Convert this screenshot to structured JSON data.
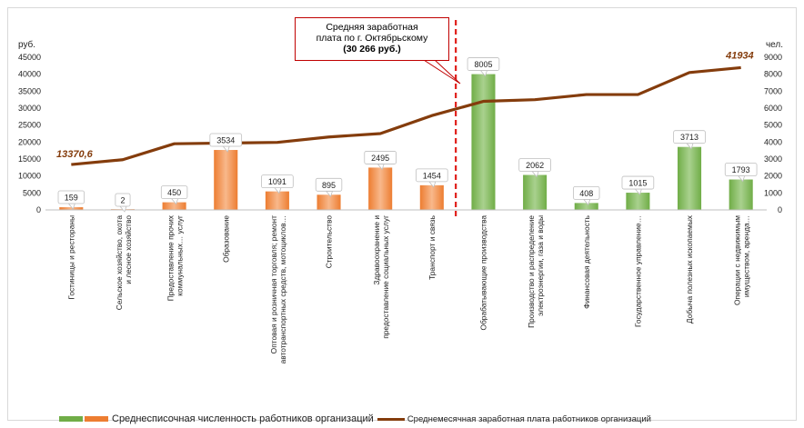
{
  "chart_data": {
    "type": "bar+line",
    "y_left": {
      "unit_label": "руб.",
      "ticks": [
        "45000",
        "40000",
        "35000",
        "30000",
        "25000",
        "20000",
        "15000",
        "10000",
        "5000",
        "0"
      ],
      "ylim": [
        0,
        45000
      ]
    },
    "y_right": {
      "unit_label": "чел.",
      "ticks": [
        "9000",
        "8000",
        "7000",
        "6000",
        "5000",
        "4000",
        "3000",
        "2000",
        "1000",
        "0"
      ],
      "ylim": [
        0,
        9000
      ]
    },
    "categories": [
      "Гостиницы и рестораны",
      "Сельское хозяйство, охота и лесное хозяйство",
      "Предоставление прочих коммунальных… услуг",
      "Образование",
      "Оптовая и розничная торговля; ремонт автотранспортных средств, мотоциклов…",
      "Строительство",
      "Здравоохранение и предоставление социальных услуг",
      "Транспорт и связь",
      "Обрабатывающие производства",
      "Производство и распределение электроэнергии, газа и воды",
      "Финансовая деятельность",
      "Государственное управление…",
      "Добыча полезных ископаемых",
      "Операции с недвижимым имуществом, аренда…"
    ],
    "series": [
      {
        "name": "Среднесписочная численность работников организаций",
        "axis": "right",
        "kind": "bar",
        "values": [
          159,
          2,
          450,
          3534,
          1091,
          895,
          2495,
          1454,
          8005,
          2062,
          408,
          1015,
          3713,
          1793
        ],
        "colors": [
          "#ed7d31",
          "#ed7d31",
          "#ed7d31",
          "#ed7d31",
          "#ed7d31",
          "#ed7d31",
          "#ed7d31",
          "#ed7d31",
          "#70ad47",
          "#70ad47",
          "#70ad47",
          "#70ad47",
          "#70ad47",
          "#70ad47"
        ]
      },
      {
        "name": "Среднемесячная заработная плата работников организаций",
        "axis": "left",
        "kind": "line",
        "color": "#843c0c",
        "values": [
          13370.6,
          14800,
          19500,
          19700,
          19900,
          21500,
          22500,
          27800,
          32000,
          32500,
          34000,
          34000,
          40500,
          41934
        ]
      }
    ],
    "end_labels": {
      "first": "13370,6",
      "last": "41934"
    },
    "annotation": {
      "lines": [
        "Средняя заработная",
        "плата по г. Октябрьскому",
        "(30 266 руб.)"
      ],
      "divider_after_category": 8,
      "divider_color": "#e0201b"
    },
    "legend": {
      "position": "bottom",
      "bar_label": "Среднесписочная численность работников организаций",
      "line_label": "Среднемесячная заработная плата работников организаций"
    },
    "grid": false
  }
}
